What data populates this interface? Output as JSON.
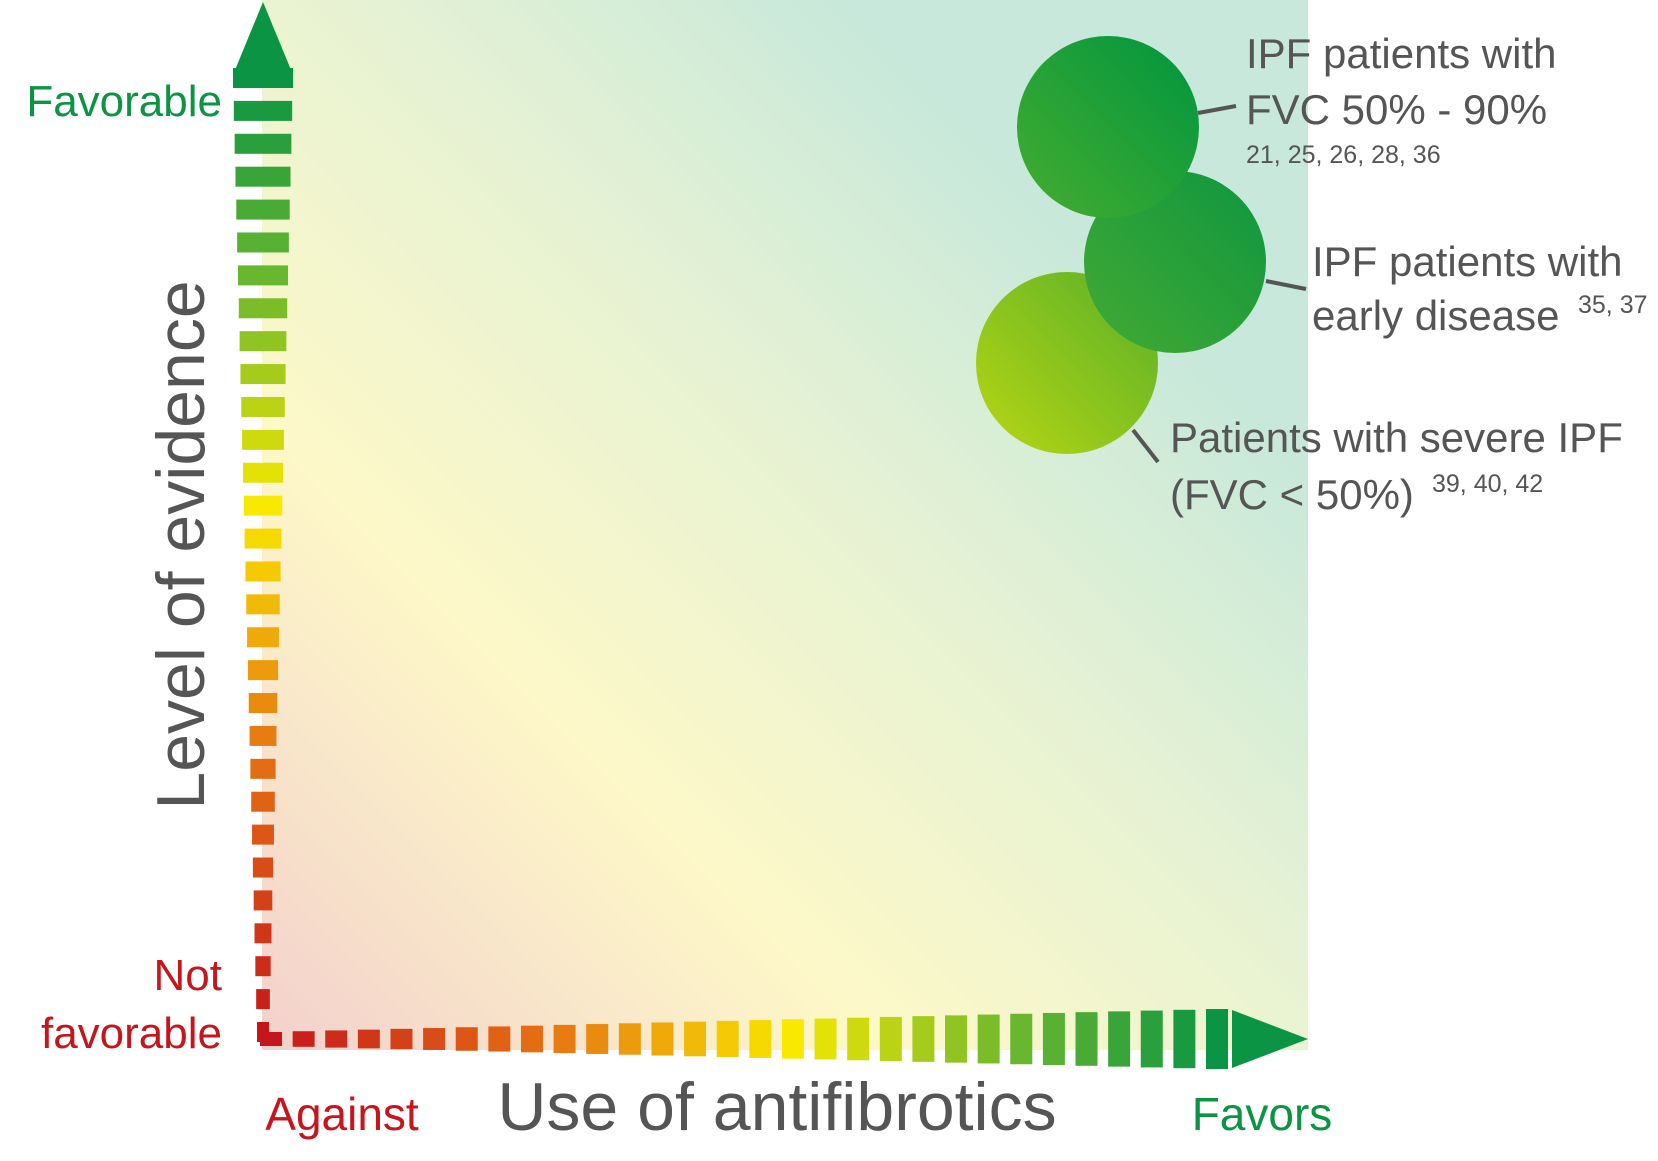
{
  "y_axis": {
    "title": "Level of evidence",
    "top_label": "Favorable",
    "bottom_label_line1": "Not",
    "bottom_label_line2": "favorable"
  },
  "x_axis": {
    "title": "Use of antifibrotics",
    "left_label": "Against",
    "right_label": "Favors"
  },
  "groups": [
    {
      "label_line1": "IPF patients with",
      "label_line2": "FVC 50% - 90%",
      "refs": "21, 25, 26, 28, 36",
      "color_light": "#46ad2e",
      "color_dark": "#009540"
    },
    {
      "label_line1": "IPF patients with",
      "label_line2": "early disease",
      "refs": "35, 37",
      "color_light": "#43aa33",
      "color_dark": "#0f9640"
    },
    {
      "label_line1": "Patients with severe IPF",
      "label_line2": "(FVC < 50%)",
      "refs": "39, 40, 42",
      "color_light": "#b8d612",
      "color_dark": "#58b02a"
    }
  ],
  "colors": {
    "favorable": "#0a9443",
    "not_favorable": "#c4161c",
    "text_gray": "#555555",
    "field_green": "#c7e8da",
    "field_yellow": "#fdf8c8",
    "field_red": "#f3d0cc"
  }
}
